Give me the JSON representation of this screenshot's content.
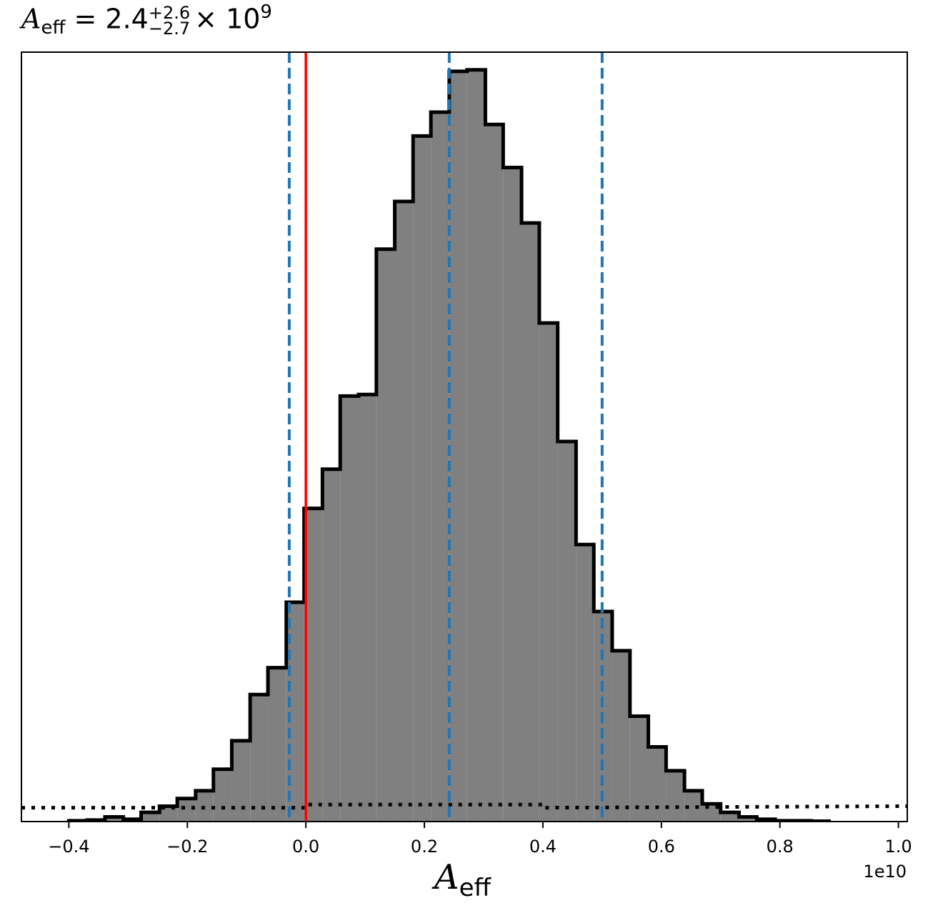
{
  "chart_data": {
    "type": "histogram",
    "title": {
      "symbol": "A",
      "subscript": "eff",
      "equals": "=",
      "value": "2.4",
      "upper_error": "+2.6",
      "lower_error": "−2.7",
      "times": "×",
      "base": "10",
      "exponent": "9"
    },
    "xlabel": {
      "symbol": "A",
      "subscript": "eff"
    },
    "x_offset_label": "1e10",
    "x_ticks": [
      -0.4,
      -0.2,
      0.0,
      0.2,
      0.4,
      0.6,
      0.8,
      1.0
    ],
    "x_tick_labels": [
      "−0.4",
      "−0.2",
      "0.0",
      "0.2",
      "0.4",
      "0.6",
      "0.8",
      "1.0"
    ],
    "xlim": [
      -0.48,
      1.015
    ],
    "ylim": [
      0,
      1.0
    ],
    "y_ticks_shown": false,
    "grid": false,
    "bin_edges": [
      -0.4,
      -0.369,
      -0.339,
      -0.308,
      -0.278,
      -0.247,
      -0.217,
      -0.186,
      -0.156,
      -0.125,
      -0.094,
      -0.064,
      -0.033,
      -0.003,
      0.028,
      0.058,
      0.089,
      0.119,
      0.15,
      0.181,
      0.211,
      0.242,
      0.272,
      0.303,
      0.333,
      0.364,
      0.394,
      0.425,
      0.456,
      0.486,
      0.517,
      0.547,
      0.578,
      0.608,
      0.639,
      0.669,
      0.7,
      0.731,
      0.761,
      0.792,
      0.822,
      0.853,
      0.883
    ],
    "counts": [
      0.001,
      0.002,
      0.006,
      0.003,
      0.012,
      0.02,
      0.03,
      0.04,
      0.068,
      0.105,
      0.165,
      0.2,
      0.285,
      0.407,
      0.458,
      0.553,
      0.555,
      0.744,
      0.806,
      0.891,
      0.922,
      0.975,
      0.977,
      0.906,
      0.85,
      0.778,
      0.648,
      0.494,
      0.36,
      0.273,
      0.222,
      0.137,
      0.097,
      0.066,
      0.04,
      0.023,
      0.012,
      0.006,
      0.003,
      0.001,
      0.001,
      0.0005
    ],
    "fill_color": "#808080",
    "edge_color": "#000000",
    "prior_line": {
      "style": "dotted",
      "color": "#000000",
      "points": [
        [
          -0.48,
          0.018
        ],
        [
          0.0,
          0.018
        ],
        [
          0.0,
          0.022
        ],
        [
          0.4,
          0.022
        ],
        [
          0.4,
          0.018
        ],
        [
          1.015,
          0.02
        ]
      ]
    },
    "vlines": [
      {
        "x": -0.028,
        "color": "#1f77b4",
        "style": "dashed"
      },
      {
        "x": 0.242,
        "color": "#1f77b4",
        "style": "dashed"
      },
      {
        "x": 0.5,
        "color": "#1f77b4",
        "style": "dashed"
      },
      {
        "x": 0.0,
        "color": "#ff0000",
        "style": "solid"
      }
    ]
  }
}
